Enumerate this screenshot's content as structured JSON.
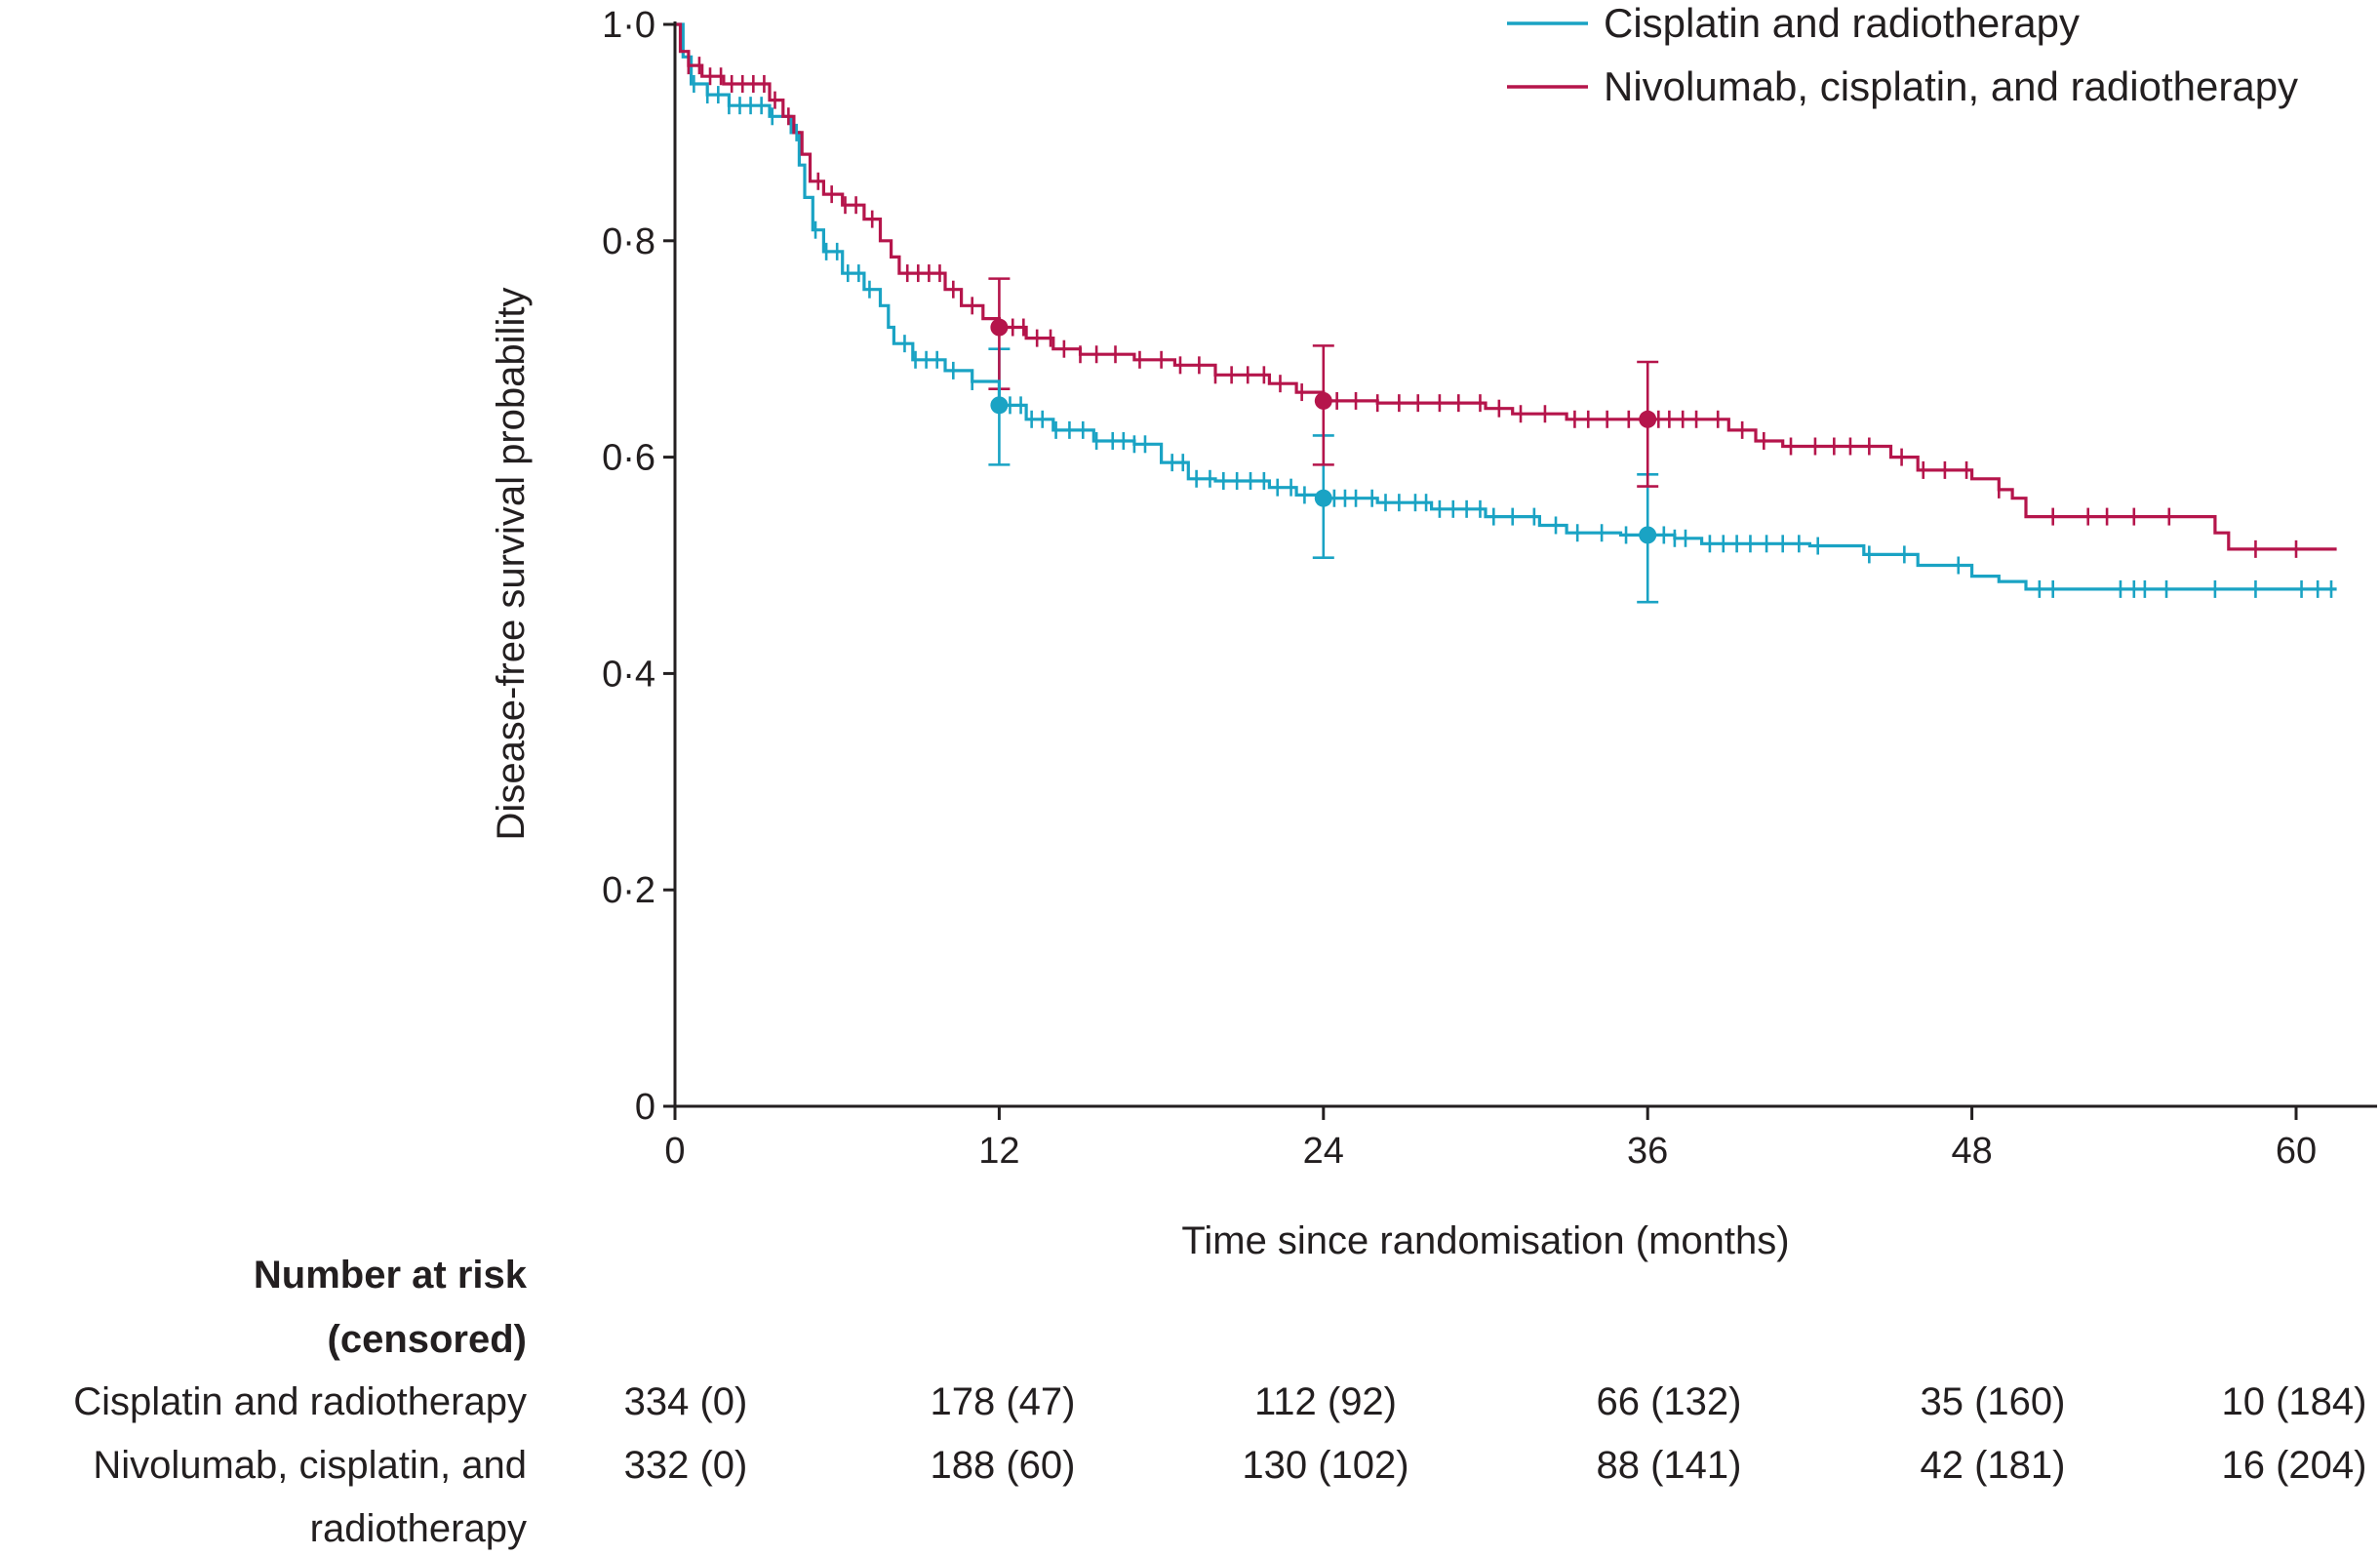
{
  "chart_data": {
    "type": "line",
    "subtype": "kaplan-meier",
    "title": "",
    "xlabel": "Time since randomisation (months)",
    "ylabel": "Disease-free survival probability",
    "xlim": [
      0,
      63
    ],
    "ylim": [
      0,
      1.0
    ],
    "x_ticks": [
      0,
      12,
      24,
      36,
      48,
      60
    ],
    "x_tick_labels": [
      "0",
      "12",
      "24",
      "36",
      "48",
      "60"
    ],
    "y_ticks": [
      0,
      0.2,
      0.4,
      0.6,
      0.8,
      1.0
    ],
    "y_tick_labels": [
      "0",
      "0·2",
      "0·4",
      "0·6",
      "0·8",
      "1·0"
    ],
    "legend_position": "top-right",
    "series": [
      {
        "name": "Cisplatin and radiotherapy",
        "color": "#1aa3c4",
        "steps": [
          [
            0,
            1.0
          ],
          [
            0.3,
            0.97
          ],
          [
            0.6,
            0.945
          ],
          [
            1.2,
            0.935
          ],
          [
            2,
            0.925
          ],
          [
            3.5,
            0.915
          ],
          [
            4.3,
            0.9
          ],
          [
            4.6,
            0.87
          ],
          [
            4.8,
            0.84
          ],
          [
            5.1,
            0.81
          ],
          [
            5.5,
            0.79
          ],
          [
            6.2,
            0.77
          ],
          [
            7,
            0.755
          ],
          [
            7.6,
            0.74
          ],
          [
            7.9,
            0.72
          ],
          [
            8.1,
            0.705
          ],
          [
            8.8,
            0.69
          ],
          [
            10,
            0.68
          ],
          [
            11,
            0.67
          ],
          [
            12,
            0.648
          ],
          [
            13,
            0.635
          ],
          [
            14,
            0.625
          ],
          [
            15.5,
            0.615
          ],
          [
            17,
            0.612
          ],
          [
            18,
            0.595
          ],
          [
            19,
            0.58
          ],
          [
            20,
            0.578
          ],
          [
            22,
            0.572
          ],
          [
            23,
            0.565
          ],
          [
            24,
            0.562
          ],
          [
            26,
            0.558
          ],
          [
            28,
            0.552
          ],
          [
            30,
            0.545
          ],
          [
            32,
            0.537
          ],
          [
            33,
            0.53
          ],
          [
            35,
            0.528
          ],
          [
            37,
            0.525
          ],
          [
            38,
            0.52
          ],
          [
            42,
            0.518
          ],
          [
            44,
            0.51
          ],
          [
            46,
            0.5
          ],
          [
            48,
            0.49
          ],
          [
            49,
            0.485
          ],
          [
            50,
            0.478
          ],
          [
            60,
            0.478
          ],
          [
            61.5,
            0.478
          ]
        ],
        "censor_times": [
          0.7,
          1.2,
          1.6,
          2.0,
          2.4,
          2.8,
          3.2,
          3.6,
          4.5,
          5.2,
          5.6,
          6.0,
          6.4,
          6.8,
          7.2,
          8.5,
          8.9,
          9.3,
          9.7,
          10.3,
          11.0,
          12.4,
          12.8,
          13.2,
          13.6,
          14.1,
          14.6,
          15.1,
          15.6,
          16.2,
          16.6,
          17.0,
          17.4,
          18.4,
          18.8,
          19.3,
          19.8,
          20.3,
          20.8,
          21.3,
          21.8,
          22.3,
          22.8,
          23.3,
          24.4,
          24.8,
          25.2,
          25.8,
          26.3,
          26.8,
          27.4,
          27.8,
          28.3,
          28.8,
          29.3,
          29.8,
          30.3,
          31.0,
          31.8,
          32.6,
          33.4,
          34.3,
          35.2,
          36.0,
          36.6,
          37.0,
          37.4,
          38.3,
          38.8,
          39.3,
          39.8,
          40.4,
          41.0,
          41.6,
          42.3,
          44.2,
          45.5,
          47.5,
          50.5,
          51.0,
          53.5,
          54.0,
          54.4,
          55.2,
          57.0,
          58.5,
          60.2,
          60.8,
          61.3
        ],
        "markers": [
          {
            "x": 12,
            "y": 0.648,
            "ci": [
              0.593,
              0.7
            ]
          },
          {
            "x": 24,
            "y": 0.562,
            "ci": [
              0.507,
              0.62
            ]
          },
          {
            "x": 36,
            "y": 0.528,
            "ci": [
              0.466,
              0.584
            ]
          }
        ]
      },
      {
        "name": "Nivolumab, cisplatin, and radiotherapy",
        "color": "#b5154b",
        "steps": [
          [
            0,
            1.0
          ],
          [
            0.2,
            0.975
          ],
          [
            0.5,
            0.962
          ],
          [
            1,
            0.952
          ],
          [
            1.8,
            0.945
          ],
          [
            3.5,
            0.93
          ],
          [
            4,
            0.915
          ],
          [
            4.4,
            0.9
          ],
          [
            4.7,
            0.88
          ],
          [
            5,
            0.855
          ],
          [
            5.5,
            0.843
          ],
          [
            6.2,
            0.833
          ],
          [
            7,
            0.82
          ],
          [
            7.6,
            0.8
          ],
          [
            8,
            0.785
          ],
          [
            8.3,
            0.77
          ],
          [
            10,
            0.755
          ],
          [
            10.6,
            0.74
          ],
          [
            11.4,
            0.728
          ],
          [
            12,
            0.72
          ],
          [
            13,
            0.71
          ],
          [
            14,
            0.7
          ],
          [
            15,
            0.695
          ],
          [
            17,
            0.69
          ],
          [
            18.5,
            0.685
          ],
          [
            20,
            0.676
          ],
          [
            22,
            0.668
          ],
          [
            23,
            0.66
          ],
          [
            24,
            0.652
          ],
          [
            26,
            0.65
          ],
          [
            30,
            0.645
          ],
          [
            31,
            0.64
          ],
          [
            33,
            0.635
          ],
          [
            39,
            0.625
          ],
          [
            40,
            0.615
          ],
          [
            41,
            0.61
          ],
          [
            45,
            0.6
          ],
          [
            46,
            0.588
          ],
          [
            48,
            0.58
          ],
          [
            49,
            0.57
          ],
          [
            49.5,
            0.562
          ],
          [
            50,
            0.545
          ],
          [
            57,
            0.53
          ],
          [
            57.5,
            0.515
          ],
          [
            61.5,
            0.515
          ]
        ],
        "censor_times": [
          0.5,
          0.9,
          1.3,
          1.7,
          2.1,
          2.5,
          2.9,
          3.3,
          3.7,
          4.2,
          5.3,
          5.8,
          6.3,
          6.7,
          7.3,
          8.6,
          9.0,
          9.4,
          9.8,
          10.3,
          11.0,
          12.5,
          12.9,
          13.4,
          13.9,
          14.4,
          15.0,
          15.6,
          16.3,
          17.2,
          18.0,
          18.7,
          19.4,
          20.0,
          20.6,
          21.2,
          21.8,
          22.4,
          23.2,
          24.5,
          25.2,
          26.0,
          26.8,
          27.5,
          28.3,
          29.0,
          29.8,
          30.5,
          31.3,
          32.2,
          33.3,
          33.8,
          34.5,
          35.3,
          36.4,
          36.8,
          37.3,
          37.8,
          38.6,
          39.5,
          40.3,
          41.3,
          42.2,
          42.9,
          43.5,
          44.2,
          45.4,
          46.2,
          47.0,
          47.8,
          49.0,
          51.0,
          52.3,
          53.0,
          54.0,
          55.3,
          58.5,
          60.0
        ]
      }
    ]
  },
  "risk_table": {
    "heading_line1": "Number at risk",
    "heading_line2": "(censored)",
    "rows": [
      {
        "label": "Cisplatin and radiotherapy",
        "values": [
          "334 (0)",
          "178 (47)",
          "112 (92)",
          "66 (132)",
          "35 (160)",
          "10 (184)"
        ]
      },
      {
        "label_line1": "Nivolumab, cisplatin, and",
        "label_line2": "radiotherapy",
        "values": [
          "332 (0)",
          "188 (60)",
          "130 (102)",
          "88 (141)",
          "42 (181)",
          "16 (204)"
        ]
      }
    ]
  }
}
